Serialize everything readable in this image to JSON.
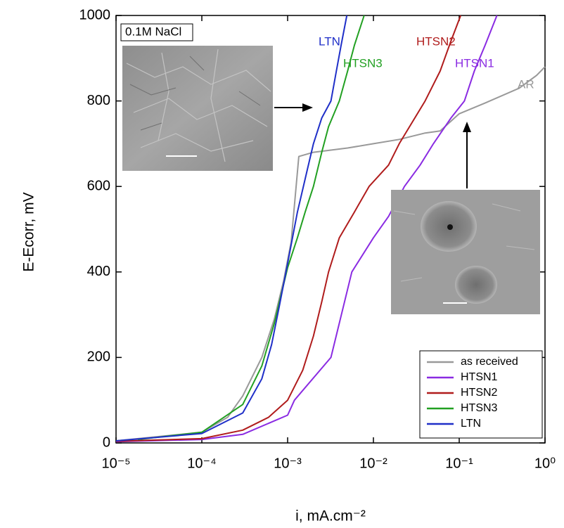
{
  "chart_data": {
    "type": "line",
    "x_label": "i, mA.cm⁻²",
    "y_label": "E-Ecorr, mV",
    "annotations": [
      "0.1M NaCl",
      "LTN",
      "HTSN3",
      "HTSN2",
      "HTSN1",
      "AR"
    ],
    "xscale": "log",
    "xlim": [
      1e-05,
      1
    ],
    "xticks": [
      {
        "value": 1e-05,
        "label": "10⁻⁵"
      },
      {
        "value": 0.0001,
        "label": "10⁻⁴"
      },
      {
        "value": 0.001,
        "label": "10⁻³"
      },
      {
        "value": 0.01,
        "label": "10⁻²"
      },
      {
        "value": 0.1,
        "label": "10⁻¹"
      },
      {
        "value": 1,
        "label": "10⁰"
      }
    ],
    "ylim": [
      0,
      1000
    ],
    "yticks": [
      0,
      200,
      400,
      600,
      800,
      1000
    ],
    "legend": "lower right",
    "series": [
      {
        "name": "as received",
        "color": "#999999",
        "x": [
          1e-05,
          0.0001,
          0.0002,
          0.0003,
          0.0005,
          0.0007,
          0.0009,
          0.0011,
          0.00135,
          0.002,
          0.005,
          0.01,
          0.02,
          0.04,
          0.06,
          0.1,
          0.2,
          0.5,
          0.8,
          1
        ],
        "values": [
          5,
          25,
          60,
          110,
          200,
          290,
          380,
          470,
          670,
          680,
          690,
          700,
          710,
          725,
          730,
          770,
          795,
          830,
          860,
          880
        ]
      },
      {
        "name": "HTSN1",
        "color": "#8a2be2",
        "x": [
          1e-05,
          0.0001,
          0.0003,
          0.001,
          0.0012,
          0.0032,
          0.0056,
          0.01,
          0.015,
          0.023,
          0.035,
          0.05,
          0.08,
          0.115,
          0.15,
          0.2,
          0.275
        ],
        "values": [
          3,
          8,
          20,
          65,
          100,
          200,
          400,
          480,
          530,
          600,
          650,
          700,
          760,
          800,
          870,
          930,
          1000
        ]
      },
      {
        "name": "HTSN2",
        "color": "#b01c1c",
        "x": [
          1e-05,
          0.0001,
          0.0003,
          0.0006,
          0.001,
          0.0015,
          0.002,
          0.0025,
          0.003,
          0.004,
          0.006,
          0.0089,
          0.015,
          0.02,
          0.04,
          0.06,
          0.08,
          0.104
        ],
        "values": [
          4,
          10,
          30,
          60,
          100,
          170,
          250,
          330,
          400,
          480,
          540,
          600,
          650,
          700,
          800,
          870,
          940,
          1000
        ]
      },
      {
        "name": "HTSN3",
        "color": "#22a022",
        "x": [
          1.8e-05,
          0.0001,
          0.0003,
          0.0005,
          0.0007,
          0.001,
          0.0013,
          0.0016,
          0.002,
          0.0025,
          0.003,
          0.004,
          0.005,
          0.006,
          0.0078
        ],
        "values": [
          8,
          25,
          90,
          180,
          280,
          410,
          480,
          540,
          600,
          680,
          740,
          800,
          870,
          930,
          1000
        ]
      },
      {
        "name": "LTN",
        "color": "#1f2fc8",
        "x": [
          1e-05,
          0.0001,
          0.0003,
          0.0005,
          0.00065,
          0.0008,
          0.001,
          0.0013,
          0.0017,
          0.002,
          0.0025,
          0.0032,
          0.0037,
          0.0042,
          0.0049
        ],
        "values": [
          5,
          22,
          70,
          150,
          230,
          320,
          420,
          540,
          640,
          700,
          760,
          800,
          870,
          930,
          1000
        ]
      }
    ]
  }
}
